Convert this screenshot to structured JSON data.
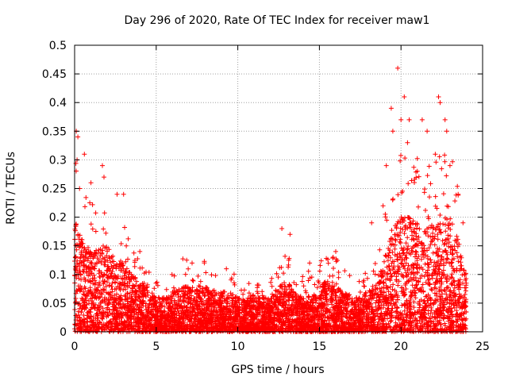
{
  "chart_data": {
    "type": "scatter",
    "title": "Day 296 of 2020, Rate Of TEC Index for receiver maw1",
    "xlabel": "GPS time / hours",
    "ylabel": "ROTI / TECUs",
    "xlim": [
      0,
      25
    ],
    "ylim": [
      0,
      0.5
    ],
    "xticks": [
      0,
      5,
      10,
      15,
      20,
      25
    ],
    "yticks": [
      0,
      0.05,
      0.1,
      0.15,
      0.2,
      0.25,
      0.3,
      0.35,
      0.4,
      0.45,
      0.5
    ],
    "xtick_labels": [
      "0",
      "5",
      "10",
      "15",
      "20",
      "25"
    ],
    "ytick_labels": [
      "0",
      "0.05",
      "0.1",
      "0.15",
      "0.2",
      "0.25",
      "0.3",
      "0.35",
      "0.4",
      "0.45",
      "0.5"
    ],
    "grid": true,
    "marker": "+",
    "color": "#ff0000",
    "x_data_range": [
      0,
      24
    ],
    "notable_points": [
      {
        "x": 0.1,
        "y": 0.35
      },
      {
        "x": 0.2,
        "y": 0.34
      },
      {
        "x": 0.15,
        "y": 0.3
      },
      {
        "x": 0.6,
        "y": 0.31
      },
      {
        "x": 1.7,
        "y": 0.29
      },
      {
        "x": 1.8,
        "y": 0.27
      },
      {
        "x": 2.6,
        "y": 0.24
      },
      {
        "x": 3.0,
        "y": 0.24
      },
      {
        "x": 12.7,
        "y": 0.18
      },
      {
        "x": 13.2,
        "y": 0.17
      },
      {
        "x": 16.0,
        "y": 0.14
      },
      {
        "x": 19.4,
        "y": 0.39
      },
      {
        "x": 19.5,
        "y": 0.35
      },
      {
        "x": 19.8,
        "y": 0.46
      },
      {
        "x": 20.2,
        "y": 0.41
      },
      {
        "x": 20.0,
        "y": 0.37
      },
      {
        "x": 20.5,
        "y": 0.37
      },
      {
        "x": 20.4,
        "y": 0.33
      },
      {
        "x": 21.3,
        "y": 0.37
      },
      {
        "x": 21.6,
        "y": 0.35
      },
      {
        "x": 22.3,
        "y": 0.41
      },
      {
        "x": 22.4,
        "y": 0.4
      },
      {
        "x": 22.7,
        "y": 0.37
      },
      {
        "x": 22.8,
        "y": 0.35
      },
      {
        "x": 22.1,
        "y": 0.31
      },
      {
        "x": 23.0,
        "y": 0.29
      },
      {
        "x": 23.8,
        "y": 0.19
      },
      {
        "x": 0.3,
        "y": 0.25
      },
      {
        "x": 1.0,
        "y": 0.26
      },
      {
        "x": 7.2,
        "y": 0.12
      },
      {
        "x": 9.3,
        "y": 0.11
      },
      {
        "x": 14.4,
        "y": 0.12
      },
      {
        "x": 18.2,
        "y": 0.19
      },
      {
        "x": 18.9,
        "y": 0.22
      },
      {
        "x": 19.1,
        "y": 0.29
      },
      {
        "x": 21.0,
        "y": 0.28
      },
      {
        "x": 23.5,
        "y": 0.24
      },
      {
        "x": 4.0,
        "y": 0.14
      }
    ],
    "density_envelope": {
      "x": [
        0,
        0.5,
        1,
        1.5,
        2,
        2.5,
        3,
        3.5,
        4,
        4.5,
        5,
        5.5,
        6,
        6.5,
        7,
        7.5,
        8,
        8.5,
        9,
        9.5,
        10,
        10.5,
        11,
        11.5,
        12,
        12.5,
        13,
        13.5,
        14,
        14.5,
        15,
        15.5,
        16,
        16.5,
        17,
        17.5,
        18,
        18.5,
        19,
        19.5,
        20,
        20.5,
        21,
        21.5,
        22,
        22.5,
        23,
        23.5,
        24
      ],
      "upper": [
        0.2,
        0.16,
        0.14,
        0.15,
        0.15,
        0.13,
        0.12,
        0.1,
        0.09,
        0.08,
        0.06,
        0.06,
        0.07,
        0.08,
        0.08,
        0.08,
        0.08,
        0.07,
        0.07,
        0.07,
        0.06,
        0.06,
        0.06,
        0.06,
        0.06,
        0.08,
        0.09,
        0.07,
        0.06,
        0.07,
        0.08,
        0.09,
        0.08,
        0.07,
        0.06,
        0.06,
        0.07,
        0.09,
        0.13,
        0.18,
        0.2,
        0.2,
        0.19,
        0.18,
        0.19,
        0.2,
        0.2,
        0.16,
        0.1
      ]
    }
  }
}
